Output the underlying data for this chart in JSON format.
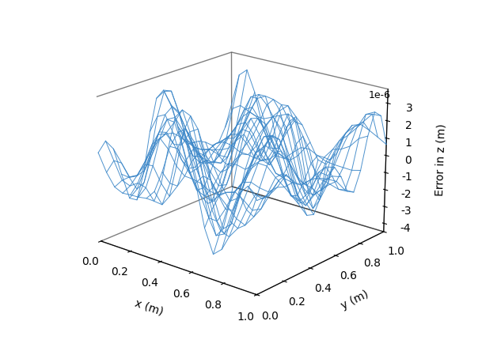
{
  "title": "",
  "xlabel": "x (m)",
  "ylabel": "y (m)",
  "zlabel": "Error in z (m)",
  "xlim": [
    0.0,
    1.0
  ],
  "ylim": [
    0.0,
    1.0
  ],
  "line_color": "#3a86c8",
  "n_grid": 20,
  "seed": 42,
  "elev": 20,
  "azim": -50,
  "figsize": [
    6.04,
    4.3
  ],
  "dpi": 100
}
